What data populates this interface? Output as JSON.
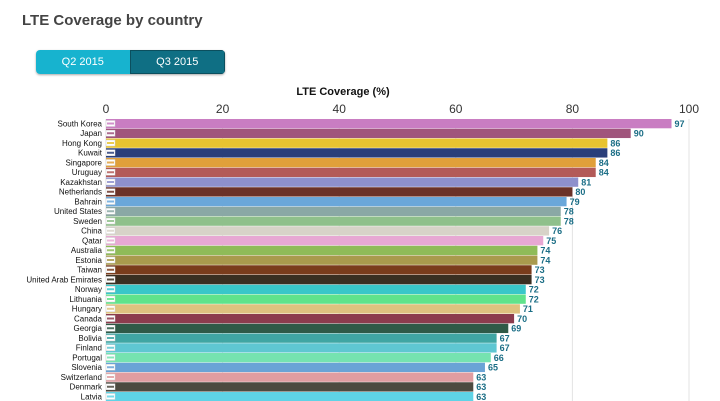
{
  "page": {
    "title": "LTE Coverage by country",
    "tabs": [
      {
        "label": "Q2 2015",
        "active": false
      },
      {
        "label": "Q3 2015",
        "active": true
      }
    ]
  },
  "chart_data": {
    "type": "bar",
    "orientation": "horizontal",
    "xlabel": "LTE Coverage (%)",
    "xlim": [
      0,
      100
    ],
    "xticks": [
      0,
      20,
      40,
      60,
      80,
      100
    ],
    "grid": true,
    "categories": [
      "South Korea",
      "Japan",
      "Hong Kong",
      "Kuwait",
      "Singapore",
      "Uruguay",
      "Kazakhstan",
      "Netherlands",
      "Bahrain",
      "United States",
      "Sweden",
      "China",
      "Qatar",
      "Australia",
      "Estonia",
      "Taiwan",
      "United Arab Emirates",
      "Norway",
      "Lithuania",
      "Hungary",
      "Canada",
      "Georgia",
      "Bolivia",
      "Finland",
      "Portugal",
      "Slovenia",
      "Switzerland",
      "Denmark",
      "Latvia"
    ],
    "values": [
      97,
      90,
      86,
      86,
      84,
      84,
      81,
      80,
      79,
      78,
      78,
      76,
      75,
      74,
      74,
      73,
      73,
      72,
      72,
      71,
      70,
      69,
      67,
      67,
      66,
      65,
      63,
      63,
      63
    ],
    "colors": [
      "#c97dc2",
      "#a0557c",
      "#e8c330",
      "#2a3f7a",
      "#e0a03a",
      "#b35a58",
      "#8e90cc",
      "#6b3228",
      "#6aa7da",
      "#8aa8a5",
      "#8fc08b",
      "#d7d3c8",
      "#e7a8d3",
      "#8fbb58",
      "#a99a4d",
      "#7a3c1c",
      "#3a2f22",
      "#39c7c9",
      "#5fe38b",
      "#dec27f",
      "#8c3c4d",
      "#2f5a47",
      "#40a6a3",
      "#5fc7d2",
      "#75e3b0",
      "#6aa3d6",
      "#e19da1",
      "#4d4a40",
      "#5ed3e6"
    ]
  }
}
